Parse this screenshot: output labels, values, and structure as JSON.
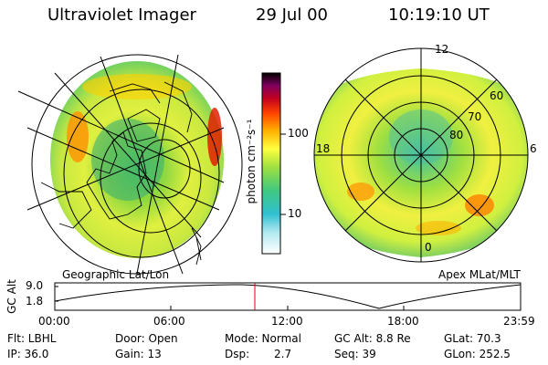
{
  "header": {
    "title": "Ultraviolet Imager",
    "date": "29 Jul 00",
    "time": "10:19:10 UT"
  },
  "left_panel": {
    "caption": "Geographic Lat/Lon"
  },
  "right_panel": {
    "caption": "Apex MLat/MLT",
    "mlt_labels": {
      "top": "12",
      "left": "18",
      "right": "6",
      "bottom": "0"
    },
    "lat_labels": [
      "60",
      "70",
      "80"
    ]
  },
  "colorbar": {
    "label": "photon cm⁻²s⁻¹",
    "ticks": [
      "100",
      "10"
    ]
  },
  "altitude_plot": {
    "ylabel": "GC Alt",
    "yticks": [
      "9.0",
      "1.8"
    ],
    "xticks": [
      "00:00",
      "06:00",
      "12:00",
      "18:00",
      "23:59"
    ]
  },
  "info": {
    "row1": {
      "flt": "Flt: LBHL",
      "door": "Door: Open",
      "mode": "Mode: Normal",
      "gcalt": "GC Alt: 8.8 Re",
      "glat": "GLat:  70.3"
    },
    "row2": {
      "ip": "IP: 36.0",
      "gain": "Gain: 13",
      "dsp_label": "Dsp:",
      "dsp_value": "2.7",
      "seq": "Seq: 39",
      "glon": "GLon: 252.5"
    }
  },
  "colors": {
    "accent_line": "#e00000",
    "colorscale": [
      "#ffffff",
      "#30c0d0",
      "#60d060",
      "#d0f040",
      "#ffff40",
      "#ffb000",
      "#e01000",
      "#a00060",
      "#000000"
    ]
  }
}
